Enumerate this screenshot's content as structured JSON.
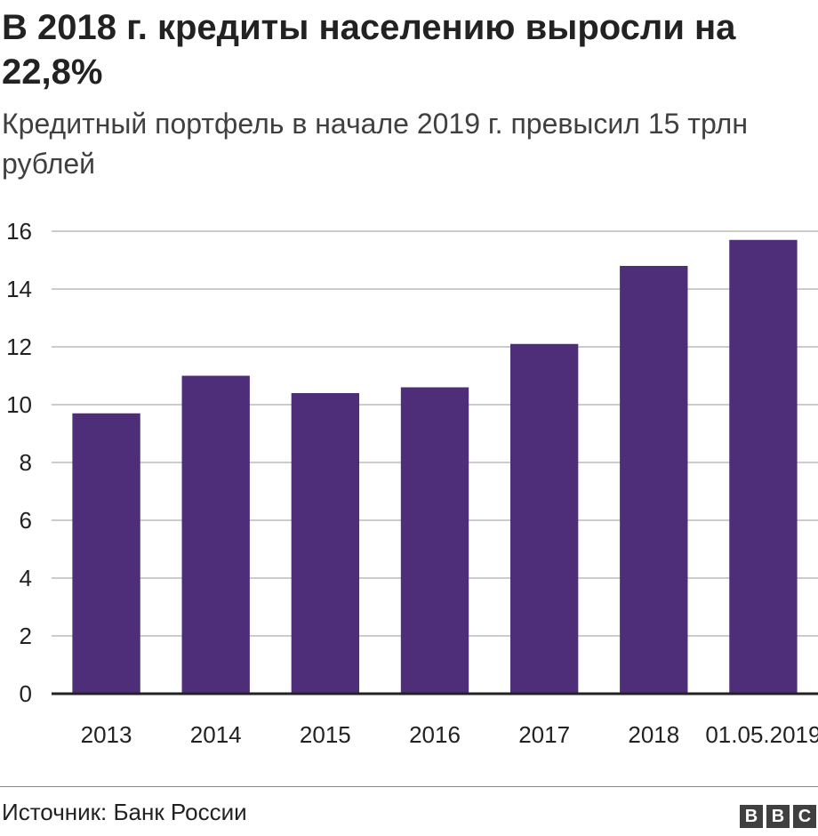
{
  "header": {
    "title": "В 2018 г. кредиты населению выросли на 22,8%",
    "subtitle": "Кредитный портфель в начале 2019 г. превысил 15 трлн рублей"
  },
  "footer": {
    "source": "Источник: Банк России",
    "logo_letters": [
      "B",
      "B",
      "C"
    ]
  },
  "chart_data": {
    "type": "bar",
    "categories": [
      "2013",
      "2014",
      "2015",
      "2016",
      "2017",
      "2018",
      "01.05.2019"
    ],
    "values": [
      9.7,
      11.0,
      10.4,
      10.6,
      12.1,
      14.8,
      15.7
    ],
    "ylim": [
      0,
      16
    ],
    "yticks": [
      0,
      2,
      4,
      6,
      8,
      10,
      12,
      14,
      16
    ],
    "grid": true,
    "legend": "none",
    "bar_color": "#4e2d79",
    "grid_color": "#cccccc",
    "axis_color": "#222222"
  }
}
